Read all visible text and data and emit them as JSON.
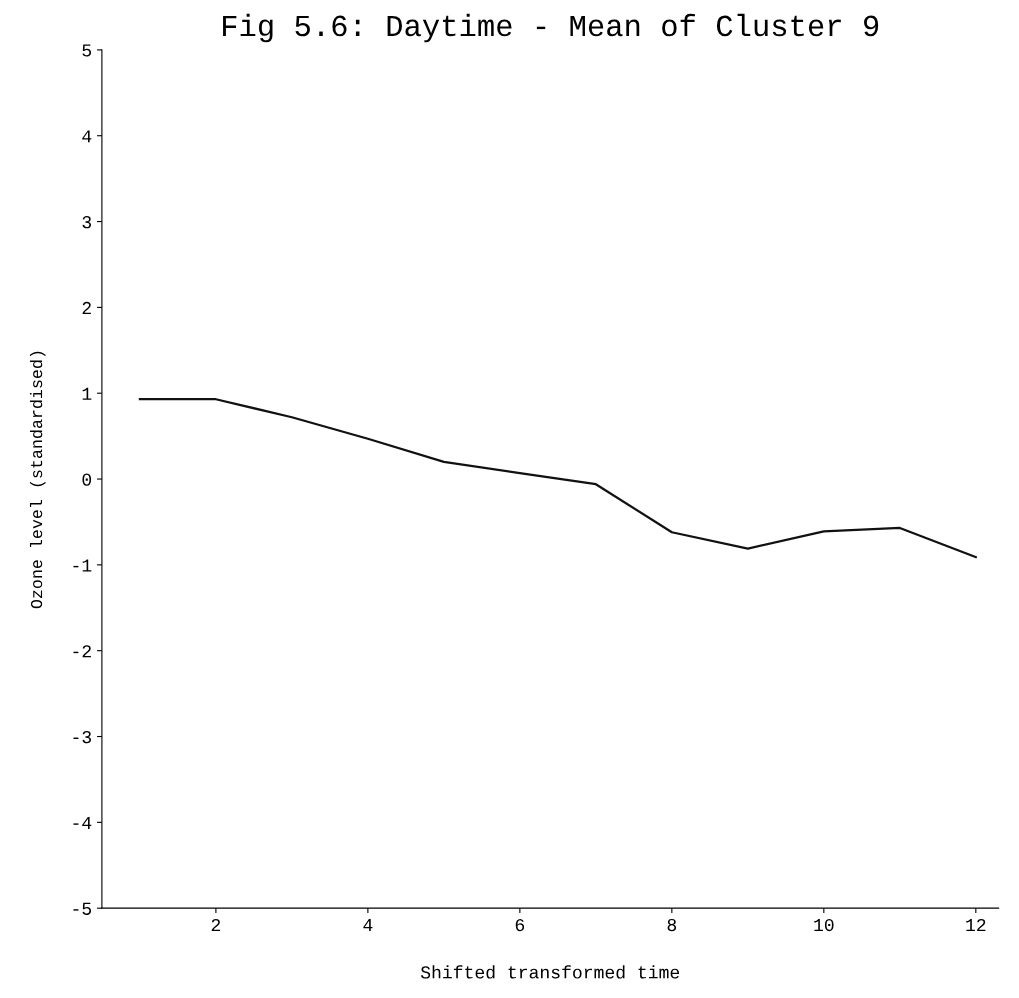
{
  "chart_data": {
    "type": "line",
    "title": "Fig 5.6: Daytime - Mean of Cluster 9",
    "xlabel": "Shifted transformed time",
    "ylabel": "Ozone level (standardised)",
    "x": [
      1,
      2,
      3,
      4,
      5,
      6,
      7,
      8,
      9,
      10,
      11,
      12
    ],
    "series": [
      {
        "color": "#111111",
        "values": [
          0.93,
          0.93,
          0.72,
          0.47,
          0.2,
          0.07,
          -0.06,
          -0.62,
          -0.81,
          -0.61,
          -0.57,
          -0.91
        ]
      }
    ],
    "xlim": [
      0.5,
      12.3
    ],
    "xticks": [
      2,
      4,
      6,
      8,
      10,
      12
    ],
    "ylim": [
      -5,
      5
    ],
    "yticks": [
      5,
      4,
      3,
      2,
      1,
      0,
      -1,
      -2,
      -3,
      -4,
      -5
    ],
    "grid": false,
    "marker": "none",
    "line_style": "solid"
  }
}
